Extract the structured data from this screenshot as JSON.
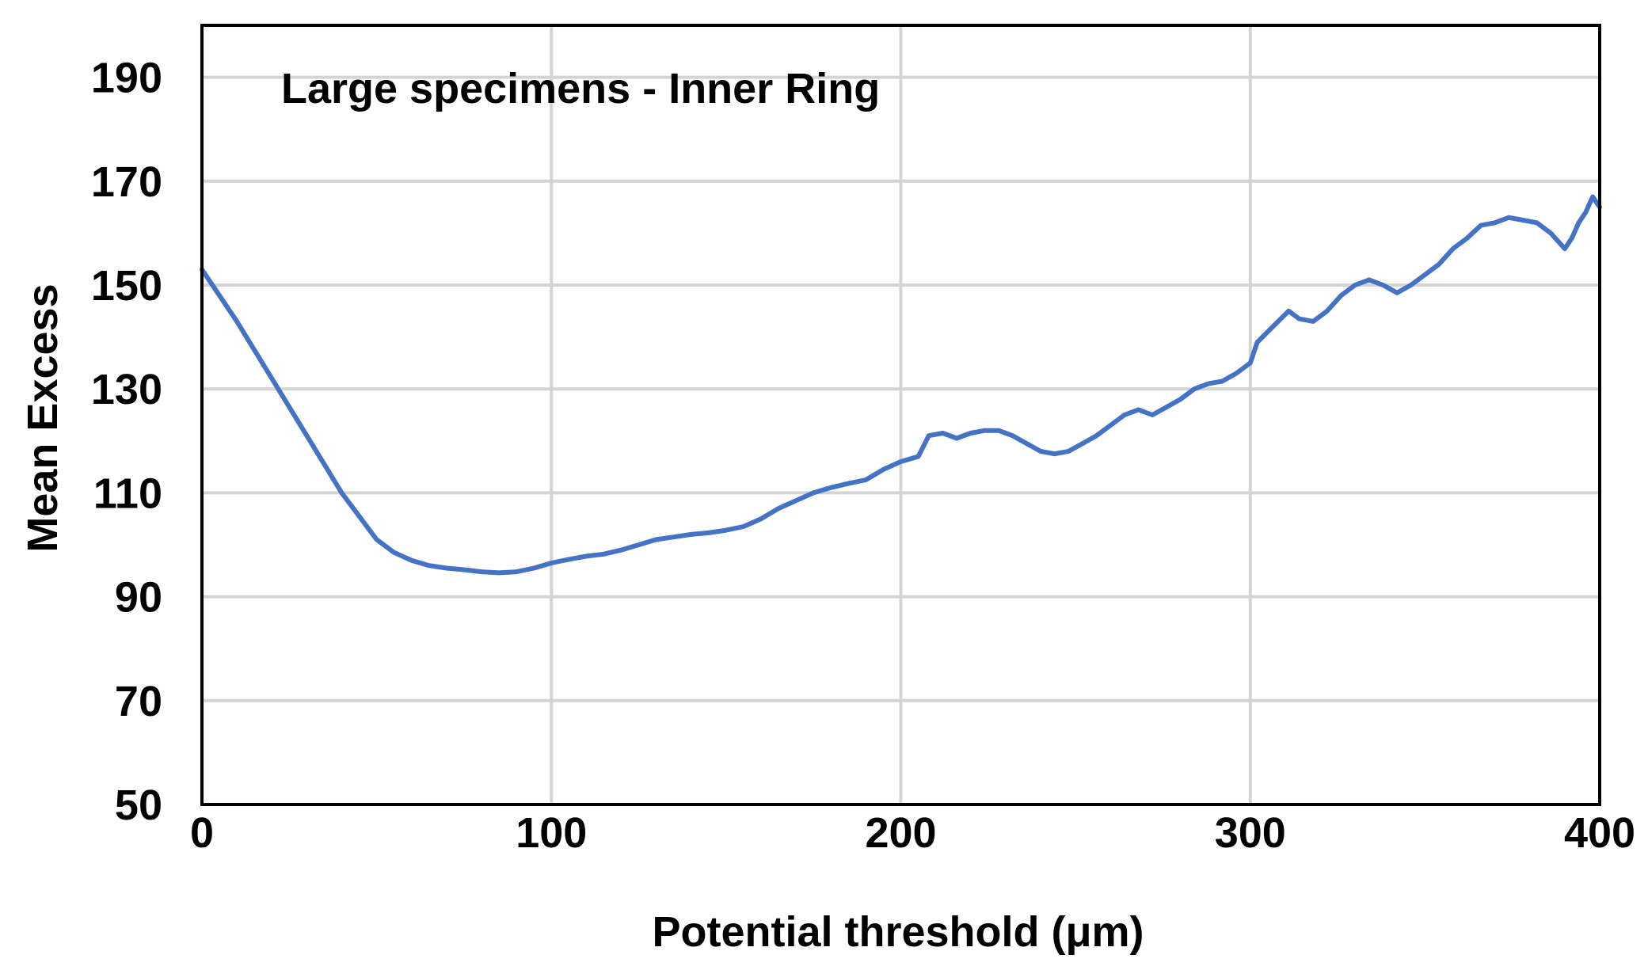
{
  "chart_data": {
    "type": "line",
    "title": "",
    "annotation": "Large specimens - Inner Ring",
    "xlabel": "Potential threshold (μm)",
    "ylabel": "Mean Excess",
    "xlim": [
      0,
      400
    ],
    "ylim": [
      50,
      200
    ],
    "xticks": [
      0,
      100,
      200,
      300,
      400
    ],
    "xtick_labels": [
      "0",
      "100",
      "200",
      "300",
      "400"
    ],
    "yticks": [
      50,
      70,
      90,
      110,
      130,
      150,
      170,
      190
    ],
    "ytick_labels": [
      "50",
      "70",
      "90",
      "110",
      "130",
      "150",
      "170",
      "190"
    ],
    "grid": true,
    "legend": "none",
    "series_color": "#4472C4",
    "series": [
      {
        "x": [
          0,
          10,
          20,
          30,
          40,
          50,
          55,
          60,
          65,
          70,
          75,
          80,
          85,
          90,
          95,
          100,
          105,
          110,
          115,
          120,
          125,
          130,
          135,
          140,
          145,
          150,
          155,
          160,
          165,
          170,
          175,
          180,
          185,
          190,
          195,
          200,
          205,
          208,
          212,
          216,
          220,
          224,
          228,
          232,
          236,
          240,
          244,
          248,
          252,
          256,
          260,
          264,
          268,
          272,
          276,
          280,
          284,
          288,
          292,
          296,
          300,
          302,
          305,
          308,
          311,
          314,
          318,
          322,
          326,
          330,
          334,
          338,
          342,
          346,
          350,
          354,
          358,
          362,
          366,
          370,
          374,
          378,
          382,
          386,
          390,
          392,
          394,
          396,
          398,
          400
        ],
        "y": [
          153,
          143,
          132,
          121,
          110,
          101,
          98.5,
          97,
          96,
          95.5,
          95.2,
          94.8,
          94.6,
          94.8,
          95.5,
          96.5,
          97.2,
          97.8,
          98.2,
          99,
          100,
          101,
          101.5,
          102,
          102.3,
          102.8,
          103.5,
          105,
          107,
          108.5,
          110,
          111,
          111.8,
          112.5,
          114.5,
          116,
          117,
          121,
          121.5,
          120.5,
          121.5,
          122,
          122,
          121,
          119.5,
          118,
          117.5,
          118,
          119.5,
          121,
          123,
          125,
          126,
          125,
          126.5,
          128,
          130,
          131,
          131.5,
          133,
          135,
          139,
          141,
          143,
          145,
          143.5,
          143,
          145,
          148,
          150,
          151,
          150,
          148.5,
          150,
          152,
          154,
          157,
          159,
          161.5,
          162,
          163,
          162.5,
          162,
          160,
          157,
          159,
          162,
          164,
          167,
          165
        ]
      }
    ]
  }
}
